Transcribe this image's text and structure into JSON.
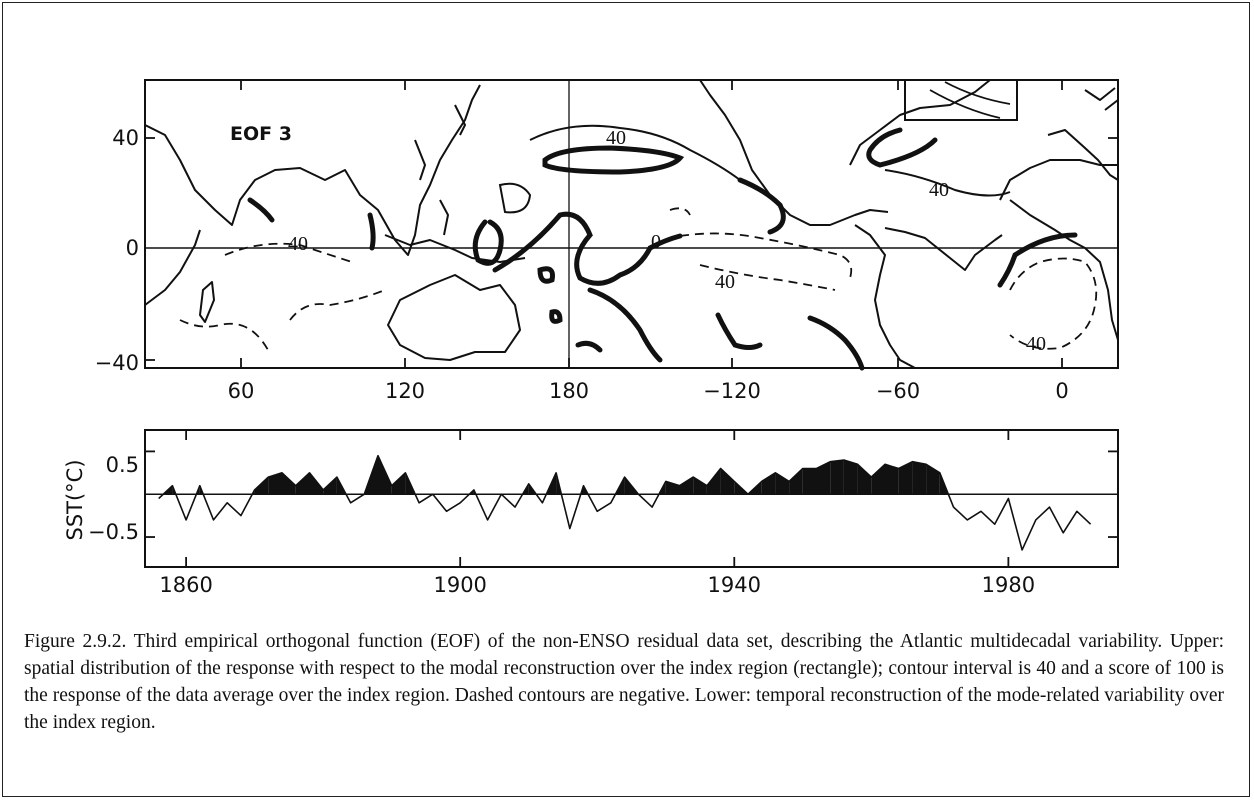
{
  "map": {
    "label": "EOF 3",
    "lon_ticks": [
      "60",
      "120",
      "180",
      "−120",
      "−60",
      "0"
    ],
    "lat_ticks": [
      "40",
      "0",
      "−40"
    ],
    "contour_labels": [
      "40",
      "40",
      "40",
      "0",
      "40",
      "40"
    ]
  },
  "chart_data": {
    "type": "area",
    "title": "",
    "xlabel": "",
    "ylabel": "SST(°C)",
    "x_ticks": [
      "1860",
      "1900",
      "1940",
      "1980"
    ],
    "y_ticks": [
      "0.5",
      "−0.5"
    ],
    "xlim": [
      1854,
      1996
    ],
    "ylim": [
      -0.85,
      0.75
    ],
    "years": [
      1856,
      1858,
      1860,
      1862,
      1864,
      1866,
      1868,
      1870,
      1872,
      1874,
      1876,
      1878,
      1880,
      1882,
      1884,
      1886,
      1888,
      1890,
      1892,
      1894,
      1896,
      1898,
      1900,
      1902,
      1904,
      1906,
      1908,
      1910,
      1912,
      1914,
      1916,
      1918,
      1920,
      1922,
      1924,
      1926,
      1928,
      1930,
      1932,
      1934,
      1936,
      1938,
      1940,
      1942,
      1944,
      1946,
      1948,
      1950,
      1952,
      1954,
      1956,
      1958,
      1960,
      1962,
      1964,
      1966,
      1968,
      1970,
      1972,
      1974,
      1976,
      1978,
      1980,
      1982,
      1984,
      1986,
      1988,
      1990,
      1992
    ],
    "values": [
      -0.05,
      0.1,
      -0.3,
      0.1,
      -0.3,
      -0.1,
      -0.25,
      0.05,
      0.2,
      0.25,
      0.1,
      0.25,
      0.05,
      0.2,
      -0.1,
      0.0,
      0.45,
      0.1,
      0.25,
      -0.1,
      0.0,
      -0.2,
      -0.1,
      0.05,
      -0.3,
      0.0,
      -0.15,
      0.12,
      -0.1,
      0.25,
      -0.4,
      0.1,
      -0.2,
      -0.1,
      0.2,
      0.0,
      -0.15,
      0.15,
      0.1,
      0.2,
      0.1,
      0.3,
      0.15,
      0.0,
      0.15,
      0.25,
      0.15,
      0.3,
      0.3,
      0.38,
      0.4,
      0.35,
      0.2,
      0.35,
      0.3,
      0.38,
      0.35,
      0.25,
      -0.15,
      -0.3,
      -0.2,
      -0.35,
      -0.05,
      -0.65,
      -0.3,
      -0.15,
      -0.45,
      -0.2,
      -0.35
    ]
  },
  "caption": "Figure 2.9.2.  Third empirical orthogonal function (EOF) of the non-ENSO residual data set, describing the Atlantic multidecadal variability.  Upper: spatial distribution of the response with respect to the modal reconstruction over the index region (rectangle); contour interval is 40 and a score of 100 is the response of the data average over the index region.  Dashed contours are negative.  Lower: temporal reconstruction of the mode-related variability over the index region."
}
